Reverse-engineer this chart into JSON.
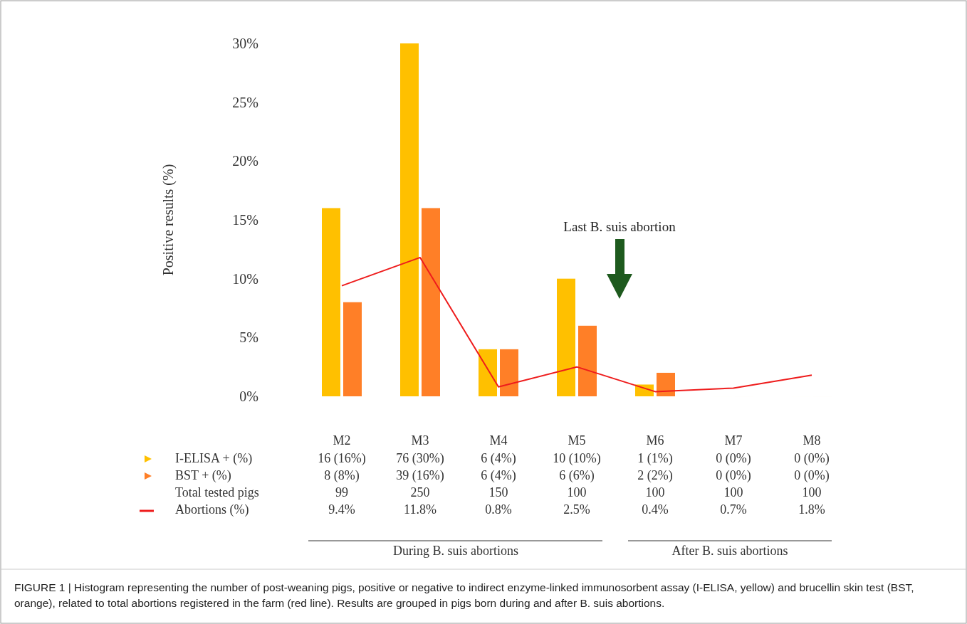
{
  "chart_data": {
    "type": "bar",
    "ylabel": "Positive results (%)",
    "categories": [
      "M2",
      "M3",
      "M4",
      "M5",
      "M6",
      "M7",
      "M8"
    ],
    "ylim": [
      0,
      30
    ],
    "yticks": [
      {
        "value": 0,
        "label": "0%"
      },
      {
        "value": 5,
        "label": "5%"
      },
      {
        "value": 10,
        "label": "10%"
      },
      {
        "value": 15,
        "label": "15%"
      },
      {
        "value": 20,
        "label": "20%"
      },
      {
        "value": 25,
        "label": "25%"
      },
      {
        "value": 30,
        "label": "30%"
      }
    ],
    "grid": false,
    "legend": "bottom",
    "series": [
      {
        "name": "I-ELISA + (%)",
        "color": "#ffc000",
        "values": [
          16,
          30,
          4,
          10,
          1,
          0,
          0
        ],
        "value_labels": [
          "16 (16%)",
          "76 (30%)",
          "6 (4%)",
          "10 (10%)",
          "1 (1%)",
          "0 (0%)",
          "0 (0%)"
        ]
      },
      {
        "name": "BST + (%)",
        "color": "#ff7f27",
        "values": [
          8,
          16,
          4,
          6,
          2,
          0,
          0
        ],
        "value_labels": [
          "8 (8%)",
          "39 (16%)",
          "6 (4%)",
          "6 (6%)",
          "2 (2%)",
          "0 (0%)",
          "0 (0%)"
        ]
      },
      {
        "name": "Abortions (%)",
        "type": "line",
        "color": "#ee1c1c",
        "values": [
          9.4,
          11.8,
          0.8,
          2.5,
          0.4,
          0.7,
          1.8
        ],
        "value_labels": [
          "9.4%",
          "11.8%",
          "0.8%",
          "2.5%",
          "0.4%",
          "0.7%",
          "1.8%"
        ]
      }
    ],
    "annotations": [
      "Last B. suis abortion",
      "During B. suis abortions",
      "After B. suis abortions",
      "FIGURE 1 | Histogram representing the number of post-weaning pigs, positive or negative to indirect enzyme-linked immunosorbent assay (I-ELISA, yellow) and brucellin skin test (BST, orange), related to total abortions registered in the farm (red line). Results are grouped in pigs born during and after B. suis abortions.",
      "Total tested pigs",
      "99",
      "250",
      "150",
      "100",
      "100",
      "100",
      "100"
    ]
  }
}
